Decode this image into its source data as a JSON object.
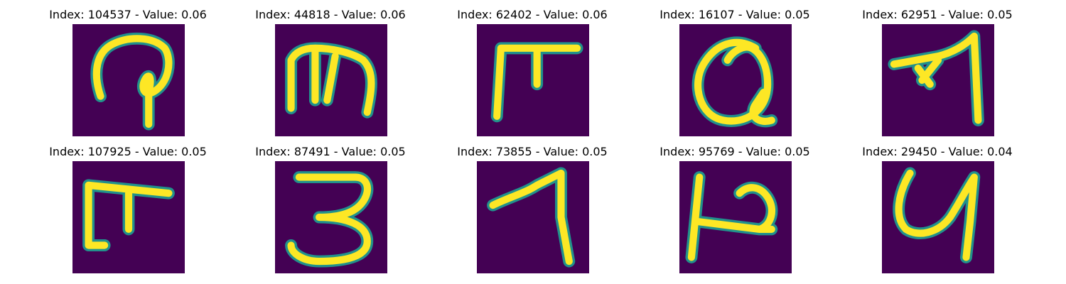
{
  "figure": {
    "background_color": "#440154",
    "stroke_color": "#fde725",
    "edge_color": "#21918c",
    "panels": [
      {
        "title": "Index: 104537 - Value: 0.06",
        "depicts": "glyph resembling a looped P-like character"
      },
      {
        "title": "Index: 44818 - Value: 0.06",
        "depicts": "glyph resembling a lowercase m"
      },
      {
        "title": "Index: 62402 - Value: 0.06",
        "depicts": "glyph resembling a T-like character"
      },
      {
        "title": "Index: 16107 - Value: 0.05",
        "depicts": "glyph resembling a looped Q-like character"
      },
      {
        "title": "Index: 62951 - Value: 0.05",
        "depicts": "glyph resembling an arrow-like character"
      },
      {
        "title": "Index: 107925 - Value: 0.05",
        "depicts": "glyph resembling an F-like character"
      },
      {
        "title": "Index: 87491 - Value: 0.05",
        "depicts": "glyph resembling the digit 3"
      },
      {
        "title": "Index: 73855 - Value: 0.05",
        "depicts": "glyph resembling the digit 1 or 7"
      },
      {
        "title": "Index: 95769 - Value: 0.05",
        "depicts": "glyph resembling an H-like character"
      },
      {
        "title": "Index: 29450 - Value: 0.04",
        "depicts": "glyph resembling a U or 4-like character"
      }
    ]
  }
}
